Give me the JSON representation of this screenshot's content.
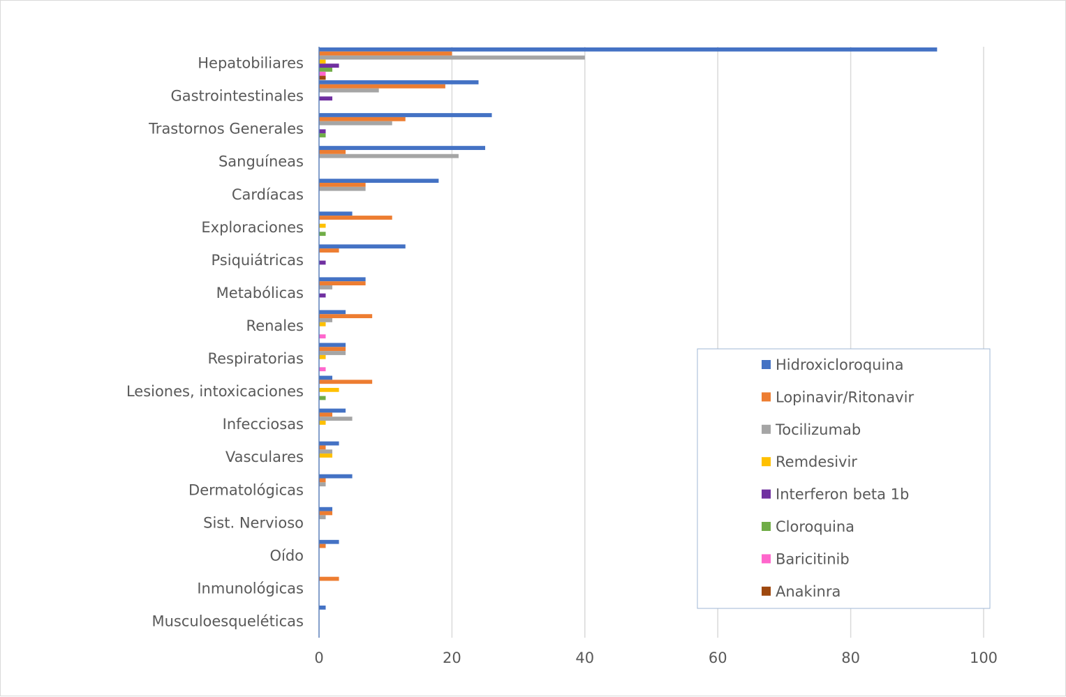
{
  "chart_data": {
    "type": "bar",
    "orientation": "horizontal",
    "categories": [
      "Hepatobiliares",
      "Gastrointestinales",
      "Trastornos Generales",
      "Sanguíneas",
      "Cardíacas",
      "Exploraciones",
      "Psiquiátricas",
      "Metabólicas",
      "Renales",
      "Respiratorias",
      "Lesiones, intoxicaciones",
      "Infecciosas",
      "Vasculares",
      "Dermatológicas",
      "Sist. Nervioso",
      "Oído",
      "Inmunológicas",
      "Musculoesqueléticas"
    ],
    "series": [
      {
        "name": "Hidroxicloroquina",
        "color": "#4472C4",
        "values": [
          93,
          24,
          26,
          25,
          18,
          5,
          13,
          7,
          4,
          4,
          2,
          4,
          3,
          5,
          2,
          3,
          0,
          1
        ]
      },
      {
        "name": "Lopinavir/Ritonavir",
        "color": "#ED7D31",
        "values": [
          20,
          19,
          13,
          4,
          7,
          11,
          3,
          7,
          8,
          4,
          8,
          2,
          1,
          1,
          2,
          1,
          3,
          0
        ]
      },
      {
        "name": "Tocilizumab",
        "color": "#A5A5A5",
        "values": [
          40,
          9,
          11,
          21,
          7,
          0,
          0,
          2,
          2,
          4,
          0,
          5,
          2,
          1,
          1,
          0,
          0,
          0
        ]
      },
      {
        "name": "Remdesivir",
        "color": "#FFC000",
        "values": [
          1,
          0,
          0,
          0,
          0,
          1,
          0,
          0,
          1,
          1,
          3,
          1,
          2,
          0,
          0,
          0,
          0,
          0
        ]
      },
      {
        "name": "Interferon beta 1b",
        "color": "#7030A0",
        "values": [
          3,
          2,
          1,
          0,
          0,
          0,
          1,
          1,
          0,
          0,
          0,
          0,
          0,
          0,
          0,
          0,
          0,
          0
        ]
      },
      {
        "name": "Cloroquina",
        "color": "#70AD47",
        "values": [
          2,
          0,
          1,
          0,
          0,
          1,
          0,
          0,
          0,
          0,
          1,
          0,
          0,
          0,
          0,
          0,
          0,
          0
        ]
      },
      {
        "name": "Baricitinib",
        "color": "#FF66CC",
        "values": [
          1,
          0,
          0,
          0,
          0,
          0,
          0,
          0,
          1,
          1,
          0,
          0,
          0,
          0,
          0,
          0,
          0,
          0
        ]
      },
      {
        "name": "Anakinra",
        "color": "#9E480E",
        "values": [
          1,
          0,
          0,
          0,
          0,
          0,
          0,
          0,
          0,
          0,
          0,
          0,
          0,
          0,
          0,
          0,
          0,
          0
        ]
      }
    ],
    "xlim": [
      0,
      100
    ],
    "xticks": [
      0,
      20,
      40,
      60,
      80,
      100
    ],
    "grid": "vertical",
    "legend": "bottom-right"
  }
}
